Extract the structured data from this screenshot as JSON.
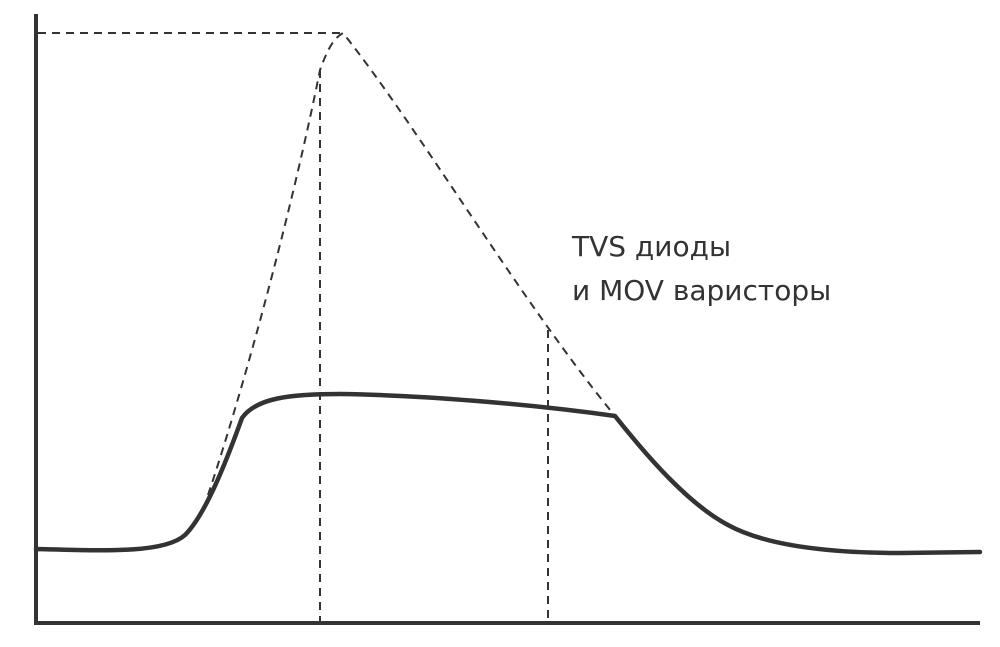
{
  "diagram": {
    "annotation_line1": "TVS диоды",
    "annotation_line2": "и MOV варисторы"
  },
  "colors": {
    "stroke": "#333333",
    "background": "#ffffff"
  }
}
